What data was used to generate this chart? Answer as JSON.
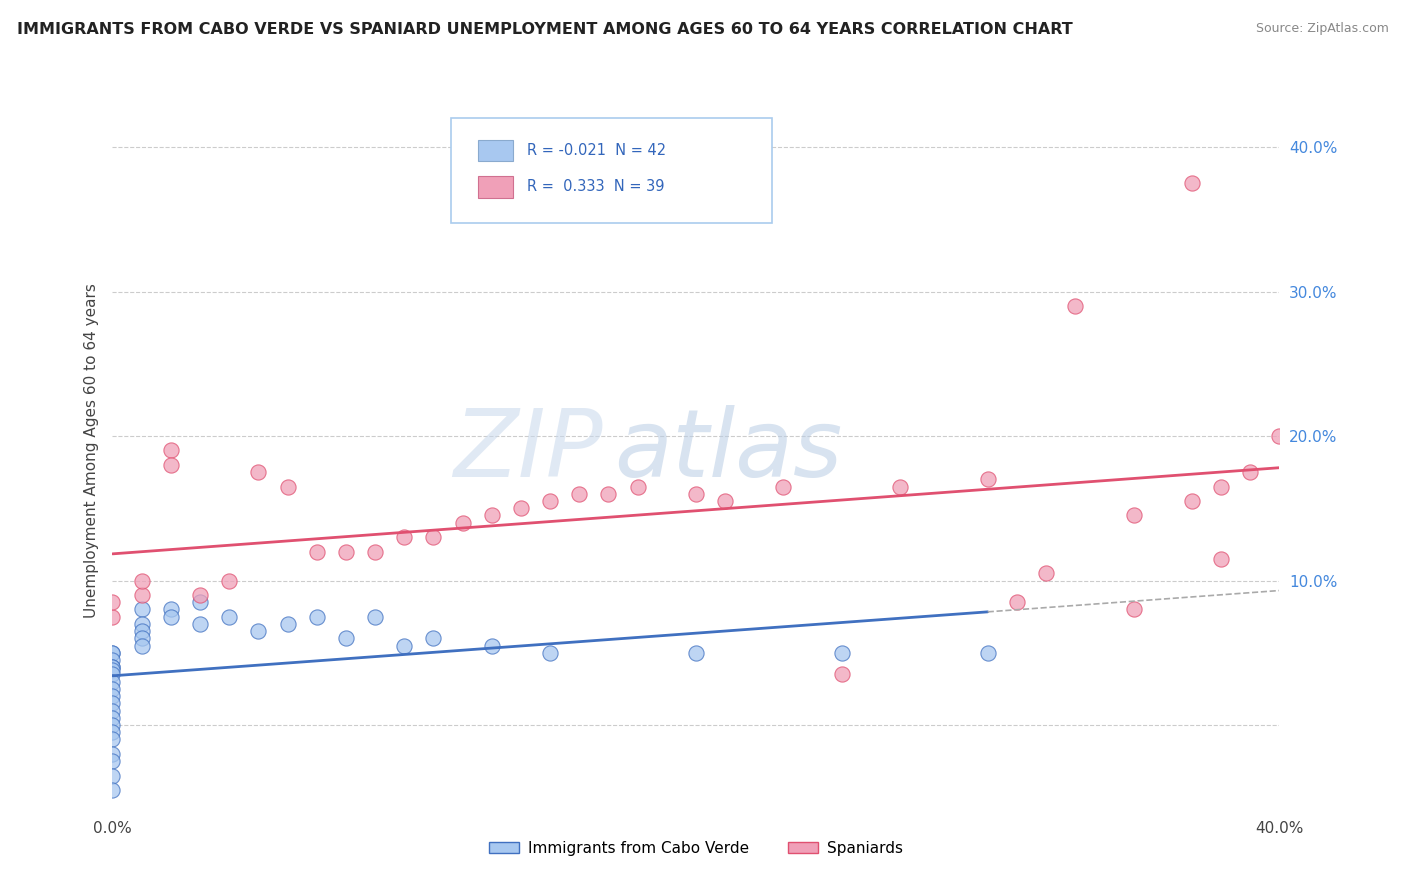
{
  "title": "IMMIGRANTS FROM CABO VERDE VS SPANIARD UNEMPLOYMENT AMONG AGES 60 TO 64 YEARS CORRELATION CHART",
  "source": "Source: ZipAtlas.com",
  "ylabel": "Unemployment Among Ages 60 to 64 years",
  "y_tick_labels": [
    "10.0%",
    "20.0%",
    "30.0%",
    "40.0%"
  ],
  "y_tick_values": [
    0.1,
    0.2,
    0.3,
    0.4
  ],
  "x_lim": [
    0.0,
    0.4
  ],
  "y_lim": [
    -0.06,
    0.44
  ],
  "legend_label_1": "Immigrants from Cabo Verde",
  "legend_label_2": "Spaniards",
  "R1": -0.021,
  "N1": 42,
  "R2": 0.333,
  "N2": 39,
  "color_blue": "#A8C8F0",
  "color_pink": "#F0A0B8",
  "color_blue_dark": "#4070C0",
  "color_pink_dark": "#E05070",
  "watermark_zip": "ZIP",
  "watermark_atlas": "atlas",
  "cabo_verde_x": [
    0.0,
    0.0,
    0.0,
    0.0,
    0.0,
    0.0,
    0.0,
    0.0,
    0.0,
    0.0,
    0.0,
    0.0,
    0.0,
    0.0,
    0.0,
    0.0,
    0.0,
    0.0,
    0.0,
    0.0,
    0.01,
    0.01,
    0.01,
    0.01,
    0.01,
    0.02,
    0.02,
    0.03,
    0.03,
    0.04,
    0.05,
    0.06,
    0.07,
    0.08,
    0.09,
    0.1,
    0.11,
    0.13,
    0.15,
    0.2,
    0.25,
    0.3
  ],
  "cabo_verde_y": [
    0.05,
    0.05,
    0.045,
    0.04,
    0.04,
    0.038,
    0.035,
    0.03,
    0.025,
    0.02,
    0.015,
    0.01,
    0.005,
    0.0,
    -0.005,
    -0.01,
    -0.02,
    -0.025,
    -0.035,
    -0.045,
    0.08,
    0.07,
    0.065,
    0.06,
    0.055,
    0.08,
    0.075,
    0.085,
    0.07,
    0.075,
    0.065,
    0.07,
    0.075,
    0.06,
    0.075,
    0.055,
    0.06,
    0.055,
    0.05,
    0.05,
    0.05,
    0.05
  ],
  "spaniards_x": [
    0.0,
    0.0,
    0.01,
    0.01,
    0.02,
    0.02,
    0.03,
    0.04,
    0.05,
    0.06,
    0.07,
    0.08,
    0.09,
    0.1,
    0.11,
    0.12,
    0.13,
    0.14,
    0.15,
    0.16,
    0.17,
    0.18,
    0.2,
    0.21,
    0.23,
    0.25,
    0.27,
    0.3,
    0.31,
    0.33,
    0.35,
    0.37,
    0.37,
    0.38,
    0.39,
    0.4,
    0.38,
    0.35,
    0.32
  ],
  "spaniards_y": [
    0.075,
    0.085,
    0.09,
    0.1,
    0.19,
    0.18,
    0.09,
    0.1,
    0.175,
    0.165,
    0.12,
    0.12,
    0.12,
    0.13,
    0.13,
    0.14,
    0.145,
    0.15,
    0.155,
    0.16,
    0.16,
    0.165,
    0.16,
    0.155,
    0.165,
    0.035,
    0.165,
    0.17,
    0.085,
    0.29,
    0.145,
    0.155,
    0.375,
    0.165,
    0.175,
    0.2,
    0.115,
    0.08,
    0.105
  ]
}
